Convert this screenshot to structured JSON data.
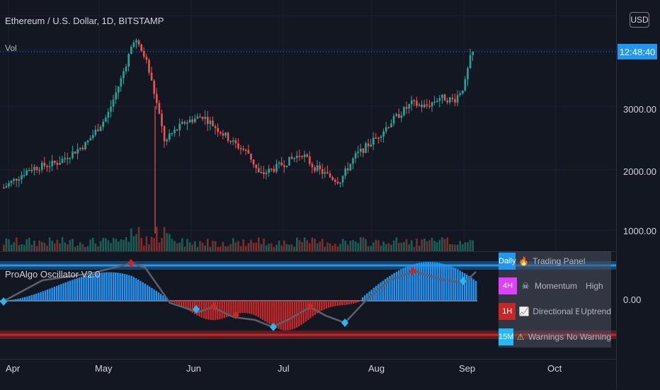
{
  "header": {
    "symbol_title": "Ethereum / U.S. Dollar, 1D, BITSTAMP",
    "volume_label": "Vol",
    "currency_button": "USD",
    "countdown": "12:48:40"
  },
  "price_axis": {
    "labels": [
      "3000.00",
      "2000.00",
      "1000.00"
    ],
    "oscillator_zero": "0.00"
  },
  "time_axis": {
    "labels": [
      "Apr",
      "May",
      "Jun",
      "Jul",
      "Aug",
      "Sep",
      "Oct"
    ]
  },
  "indicator": {
    "name": "ProAlgo Oscillator V2.0"
  },
  "trading_panel": {
    "rows": [
      {
        "tf": "Daily",
        "tf_color": "#2196f3",
        "icon": "🔥",
        "label": "Trading Panel",
        "value": ""
      },
      {
        "tf": "4H",
        "tf_color": "#e040fb",
        "icon": "☠",
        "label": "Momentum",
        "value": "High"
      },
      {
        "tf": "1H",
        "tf_color": "#c62828",
        "icon": "📈",
        "label": "Directional Bias",
        "value": "Uptrend"
      },
      {
        "tf": "15M",
        "tf_color": "#29b6f6",
        "icon": "⚠",
        "label": "Warnings",
        "value": "No Warning"
      }
    ]
  },
  "colors": {
    "up": "#26a69a",
    "down": "#ef5350",
    "osc_pos": "#2196f3",
    "osc_neg": "#c62828",
    "band_top": "#2196f3",
    "band_bottom": "#c62828"
  },
  "chart_data": {
    "type": "candlestick",
    "price_levels": [
      3000,
      2000,
      1000
    ],
    "last_price_note": "price line near top"
  }
}
